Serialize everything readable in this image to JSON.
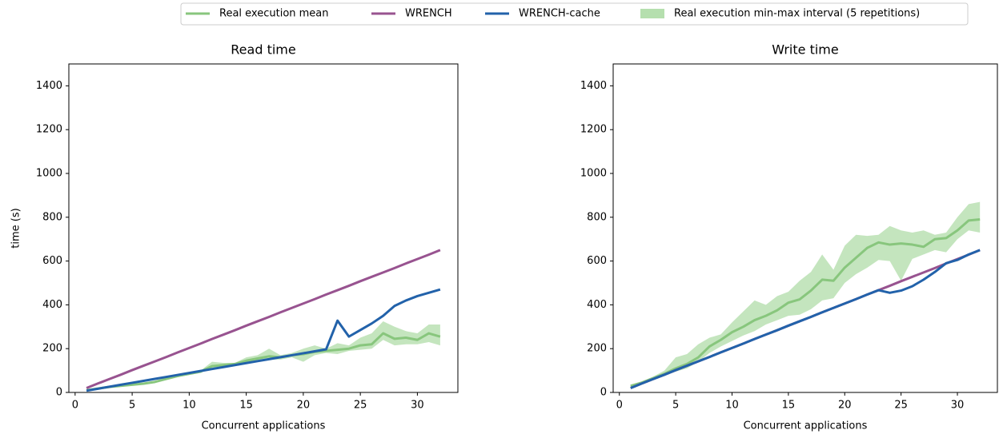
{
  "chart_data": [
    {
      "type": "line",
      "title": "Read time",
      "xlabel": "Concurrent applications",
      "ylabel": "time (s)",
      "x": [
        1,
        2,
        3,
        4,
        5,
        6,
        7,
        8,
        9,
        10,
        11,
        12,
        13,
        14,
        15,
        16,
        17,
        18,
        19,
        20,
        21,
        22,
        23,
        24,
        25,
        26,
        27,
        28,
        29,
        30,
        31,
        32
      ],
      "xlim": [
        -0.55,
        33.55
      ],
      "xticks": [
        0,
        5,
        10,
        15,
        20,
        25,
        30
      ],
      "ylim": [
        0,
        1500
      ],
      "yticks": [
        0,
        200,
        400,
        600,
        800,
        1000,
        1200,
        1400
      ],
      "interval": {
        "name": "Real execution min-max interval (5 repetitions)",
        "color": "#b5dfae",
        "min": [
          8,
          15,
          22,
          27,
          32,
          37,
          44,
          58,
          70,
          80,
          90,
          110,
          118,
          125,
          135,
          145,
          150,
          150,
          160,
          140,
          170,
          180,
          175,
          190,
          195,
          200,
          240,
          215,
          220,
          220,
          230,
          215
        ],
        "max": [
          12,
          20,
          28,
          33,
          38,
          43,
          52,
          66,
          80,
          90,
          100,
          140,
          135,
          135,
          160,
          170,
          200,
          170,
          180,
          200,
          215,
          200,
          225,
          215,
          250,
          270,
          325,
          300,
          280,
          270,
          310,
          310
        ]
      },
      "series": [
        {
          "name": "Real execution mean",
          "color": "#88c67d",
          "values": [
            10,
            18,
            25,
            30,
            35,
            40,
            48,
            62,
            75,
            85,
            95,
            120,
            125,
            130,
            145,
            155,
            165,
            160,
            170,
            175,
            185,
            190,
            195,
            200,
            215,
            220,
            270,
            245,
            250,
            240,
            270,
            255
          ]
        },
        {
          "name": "WRENCH",
          "color": "#985390",
          "values": [
            20,
            41,
            61,
            81,
            102,
            122,
            142,
            162,
            183,
            203,
            223,
            244,
            264,
            284,
            305,
            325,
            345,
            366,
            386,
            406,
            426,
            447,
            467,
            487,
            508,
            528,
            548,
            568,
            589,
            609,
            629,
            650
          ]
        },
        {
          "name": "WRENCH-cache",
          "color": "#2262aa",
          "values": [
            8,
            17,
            26,
            35,
            44,
            53,
            62,
            71,
            80,
            89,
            98,
            107,
            116,
            125,
            134,
            143,
            152,
            161,
            170,
            179,
            188,
            197,
            328,
            255,
            285,
            315,
            350,
            395,
            420,
            440,
            455,
            470
          ]
        }
      ]
    },
    {
      "type": "line",
      "title": "Write time",
      "xlabel": "Concurrent applications",
      "x": [
        1,
        2,
        3,
        4,
        5,
        6,
        7,
        8,
        9,
        10,
        11,
        12,
        13,
        14,
        15,
        16,
        17,
        18,
        19,
        20,
        21,
        22,
        23,
        24,
        25,
        26,
        27,
        28,
        29,
        30,
        31,
        32
      ],
      "xlim": [
        -0.55,
        33.55
      ],
      "xticks": [
        0,
        5,
        10,
        15,
        20,
        25,
        30
      ],
      "ylim": [
        0,
        1500
      ],
      "yticks": [
        0,
        200,
        400,
        600,
        800,
        1000,
        1200,
        1400
      ],
      "interval": {
        "name": "Real execution min-max interval (5 repetitions)",
        "color": "#b5dfae",
        "min": [
          25,
          40,
          58,
          78,
          95,
          110,
          140,
          180,
          210,
          235,
          260,
          280,
          310,
          330,
          350,
          355,
          380,
          420,
          430,
          500,
          540,
          570,
          605,
          600,
          510,
          610,
          630,
          650,
          640,
          700,
          740,
          730
        ],
        "max": [
          35,
          50,
          72,
          100,
          160,
          175,
          220,
          250,
          265,
          320,
          370,
          420,
          400,
          440,
          460,
          510,
          550,
          630,
          560,
          670,
          720,
          715,
          720,
          760,
          740,
          730,
          740,
          720,
          730,
          800,
          860,
          870
        ]
      },
      "series": [
        {
          "name": "Real execution mean",
          "color": "#88c67d",
          "values": [
            30,
            45,
            65,
            85,
            110,
            130,
            160,
            210,
            240,
            275,
            300,
            330,
            350,
            375,
            410,
            425,
            465,
            515,
            510,
            570,
            615,
            660,
            685,
            675,
            680,
            675,
            665,
            700,
            705,
            740,
            785,
            790
          ]
        },
        {
          "name": "WRENCH",
          "color": "#985390",
          "values": [
            20,
            41,
            61,
            81,
            102,
            122,
            142,
            162,
            183,
            203,
            223,
            244,
            264,
            284,
            305,
            325,
            345,
            366,
            386,
            406,
            426,
            447,
            467,
            487,
            508,
            528,
            548,
            568,
            589,
            609,
            629,
            650
          ]
        },
        {
          "name": "WRENCH-cache",
          "color": "#2262aa",
          "values": [
            20,
            41,
            61,
            81,
            102,
            122,
            142,
            162,
            183,
            203,
            223,
            244,
            264,
            284,
            305,
            325,
            345,
            366,
            386,
            406,
            426,
            447,
            467,
            455,
            465,
            485,
            515,
            550,
            590,
            605,
            630,
            650
          ]
        }
      ]
    }
  ]
}
